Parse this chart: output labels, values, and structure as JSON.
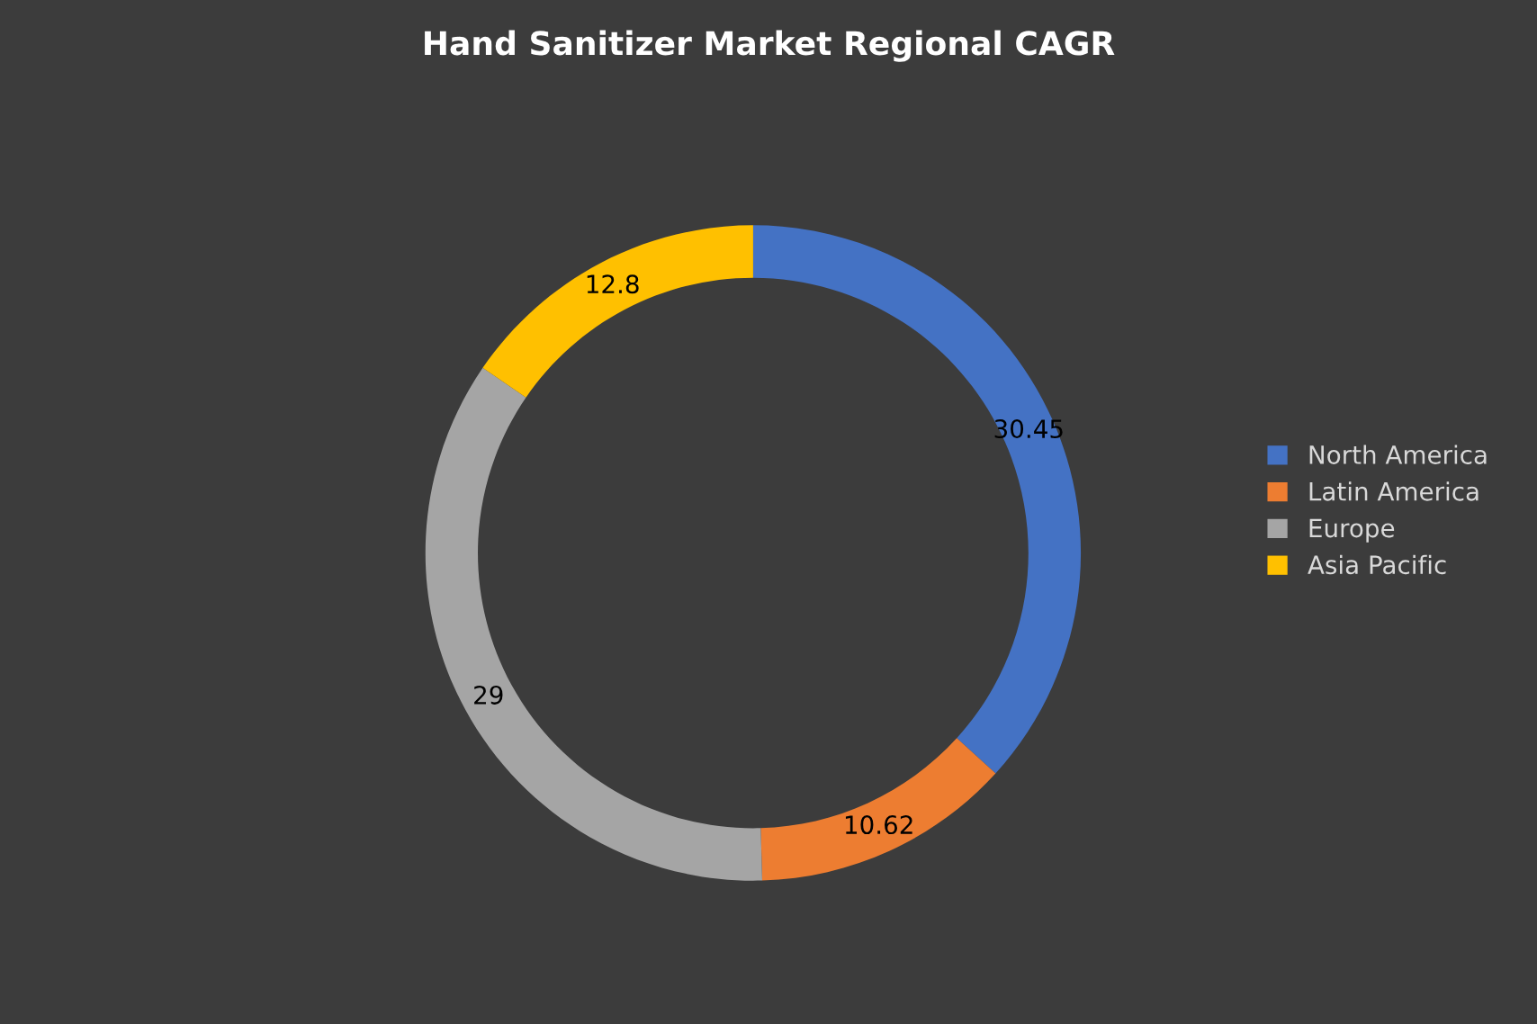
{
  "chart_data": {
    "type": "donut",
    "title": "Hand Sanitizer Market Regional CAGR",
    "categories": [
      "North America",
      "Latin America",
      "Europe",
      "Asia Pacific"
    ],
    "values": [
      30.45,
      10.62,
      29,
      12.8
    ],
    "colors": [
      "#4472c4",
      "#ed7d31",
      "#a5a5a5",
      "#ffc000"
    ],
    "data_labels": true,
    "legend": "right"
  }
}
